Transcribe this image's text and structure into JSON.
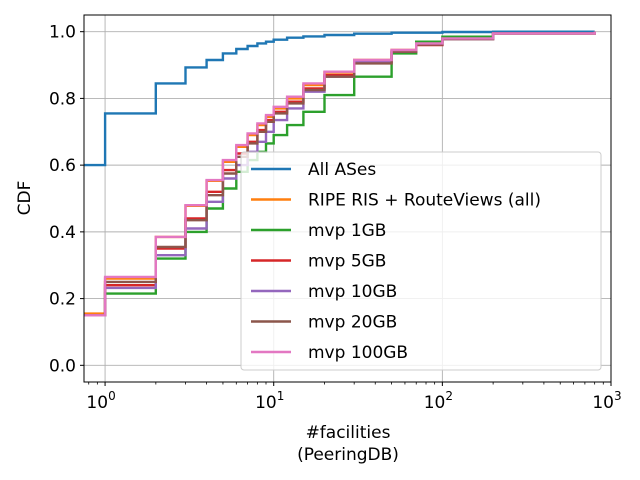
{
  "chart_data": {
    "type": "line",
    "step": true,
    "xscale": "log",
    "xlim": [
      0.75,
      1000
    ],
    "ylim": [
      -0.05,
      1.05
    ],
    "xlabel": "#facilities",
    "xlabel2": "(PeeringDB)",
    "ylabel": "CDF",
    "grid": true,
    "legend": "lower-right",
    "xticks": [
      {
        "value": 1,
        "base": "10",
        "exp": "0"
      },
      {
        "value": 10,
        "base": "10",
        "exp": "1"
      },
      {
        "value": 100,
        "base": "10",
        "exp": "2"
      },
      {
        "value": 1000,
        "base": "10",
        "exp": "3"
      }
    ],
    "yticks": [
      {
        "value": 0.0,
        "label": "0.0"
      },
      {
        "value": 0.2,
        "label": "0.2"
      },
      {
        "value": 0.4,
        "label": "0.4"
      },
      {
        "value": 0.6,
        "label": "0.6"
      },
      {
        "value": 0.8,
        "label": "0.8"
      },
      {
        "value": 1.0,
        "label": "1.0"
      }
    ],
    "series": [
      {
        "name": "All ASes",
        "color": "#1f77b4",
        "x": [
          1,
          2,
          3,
          4,
          5,
          6,
          7,
          8,
          9,
          10,
          12,
          15,
          20,
          30,
          50,
          100,
          200,
          800
        ],
        "y": [
          0.755,
          0.845,
          0.893,
          0.915,
          0.935,
          0.948,
          0.957,
          0.965,
          0.97,
          0.976,
          0.982,
          0.986,
          0.99,
          0.994,
          0.997,
          0.999,
          1.0,
          1.0
        ]
      },
      {
        "name": "RIPE RIS + RouteViews (all)",
        "color": "#ff7f0e",
        "x": [
          1,
          2,
          3,
          4,
          5,
          6,
          7,
          8,
          9,
          10,
          12,
          15,
          20,
          30,
          50,
          70,
          100,
          200,
          800
        ],
        "y": [
          0.26,
          0.385,
          0.478,
          0.553,
          0.61,
          0.655,
          0.69,
          0.72,
          0.745,
          0.77,
          0.8,
          0.84,
          0.878,
          0.915,
          0.945,
          0.965,
          0.98,
          0.995,
          1.0
        ]
      },
      {
        "name": "mvp 1GB",
        "color": "#2ca02c",
        "x": [
          1,
          2,
          3,
          4,
          5,
          6,
          7,
          8,
          9,
          10,
          12,
          15,
          20,
          30,
          50,
          70,
          100,
          200,
          800
        ],
        "y": [
          0.215,
          0.32,
          0.4,
          0.47,
          0.53,
          0.58,
          0.615,
          0.64,
          0.665,
          0.69,
          0.72,
          0.76,
          0.81,
          0.865,
          0.935,
          0.97,
          0.985,
          0.995,
          1.0
        ]
      },
      {
        "name": "mvp 5GB",
        "color": "#d62728",
        "x": [
          1,
          2,
          3,
          4,
          5,
          6,
          7,
          8,
          9,
          10,
          12,
          15,
          20,
          30,
          50,
          70,
          100,
          200,
          800
        ],
        "y": [
          0.24,
          0.35,
          0.44,
          0.52,
          0.585,
          0.635,
          0.67,
          0.705,
          0.735,
          0.76,
          0.79,
          0.83,
          0.87,
          0.91,
          0.94,
          0.96,
          0.978,
          0.995,
          1.0
        ]
      },
      {
        "name": "mvp 10GB",
        "color": "#9467bd",
        "x": [
          1,
          2,
          3,
          4,
          5,
          6,
          7,
          8,
          9,
          10,
          12,
          15,
          20,
          30,
          50,
          70,
          100,
          200,
          800
        ],
        "y": [
          0.232,
          0.33,
          0.41,
          0.49,
          0.56,
          0.6,
          0.64,
          0.67,
          0.7,
          0.735,
          0.77,
          0.82,
          0.865,
          0.91,
          0.94,
          0.962,
          0.978,
          0.995,
          1.0
        ]
      },
      {
        "name": "mvp 20GB",
        "color": "#8c564b",
        "x": [
          1,
          2,
          3,
          4,
          5,
          6,
          7,
          8,
          9,
          10,
          12,
          15,
          20,
          30,
          50,
          70,
          100,
          200,
          800
        ],
        "y": [
          0.25,
          0.355,
          0.435,
          0.51,
          0.575,
          0.625,
          0.665,
          0.7,
          0.73,
          0.755,
          0.785,
          0.825,
          0.865,
          0.905,
          0.94,
          0.962,
          0.978,
          0.995,
          1.0
        ]
      },
      {
        "name": "mvp 100GB",
        "color": "#e377c2",
        "x": [
          1,
          2,
          3,
          4,
          5,
          6,
          7,
          8,
          9,
          10,
          12,
          15,
          20,
          30,
          50,
          70,
          100,
          200,
          800
        ],
        "y": [
          0.265,
          0.385,
          0.48,
          0.555,
          0.615,
          0.66,
          0.695,
          0.725,
          0.75,
          0.775,
          0.805,
          0.845,
          0.88,
          0.915,
          0.945,
          0.965,
          0.98,
          0.995,
          1.0
        ]
      }
    ],
    "series_start_y": [
      0.6,
      0.155,
      0.15,
      0.15,
      0.15,
      0.15,
      0.15
    ]
  }
}
